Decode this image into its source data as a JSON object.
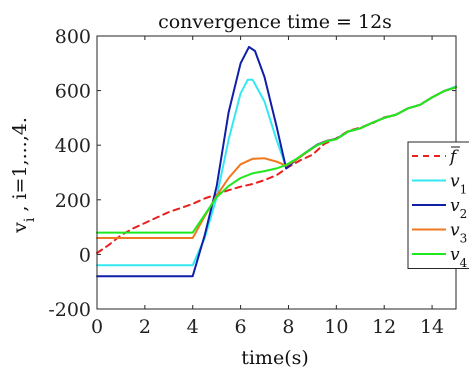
{
  "chart_data": {
    "type": "line",
    "title": "convergence time = 12s",
    "xlabel": "time(s)",
    "ylabel": "v , i=1,...,4.",
    "ylabel_sub": "i",
    "xlim": [
      0,
      15
    ],
    "ylim": [
      -200,
      800
    ],
    "xticks": [
      "0",
      "2",
      "4",
      "6",
      "8",
      "10",
      "12",
      "14"
    ],
    "yticks": [
      "-200",
      "0",
      "200",
      "400",
      "600",
      "800"
    ],
    "grid": false,
    "legend_position": "right",
    "series": [
      {
        "name": "f",
        "legend_main": "f",
        "legend_sub": "",
        "color": "#e8201e",
        "dash": true,
        "points": [
          [
            0,
            5
          ],
          [
            0.5,
            35
          ],
          [
            1,
            70
          ],
          [
            1.5,
            95
          ],
          [
            2,
            115
          ],
          [
            2.5,
            135
          ],
          [
            3,
            155
          ],
          [
            3.5,
            170
          ],
          [
            4,
            185
          ],
          [
            4.5,
            205
          ],
          [
            5,
            220
          ],
          [
            5.5,
            235
          ],
          [
            6,
            248
          ],
          [
            6.5,
            258
          ],
          [
            7,
            272
          ],
          [
            7.5,
            290
          ],
          [
            8,
            320
          ],
          [
            8.5,
            345
          ],
          [
            9,
            365
          ],
          [
            9.5,
            405
          ],
          [
            10,
            425
          ],
          [
            10.5,
            452
          ],
          [
            11,
            465
          ],
          [
            11.5,
            480
          ],
          [
            12,
            502
          ],
          [
            12.5,
            512
          ],
          [
            13,
            535
          ],
          [
            13.5,
            548
          ],
          [
            14,
            575
          ],
          [
            14.5,
            598
          ],
          [
            15,
            615
          ]
        ]
      },
      {
        "name": "v1",
        "legend_main": "v",
        "legend_sub": "1",
        "color": "#33e8f2",
        "dash": false,
        "points": [
          [
            0,
            -40
          ],
          [
            4,
            -40
          ],
          [
            4.5,
            60
          ],
          [
            5,
            210
          ],
          [
            5.5,
            420
          ],
          [
            6,
            590
          ],
          [
            6.3,
            640
          ],
          [
            6.5,
            640
          ],
          [
            7,
            560
          ],
          [
            7.5,
            420
          ],
          [
            7.9,
            320
          ],
          [
            8.3,
            345
          ],
          [
            8.7,
            370
          ],
          [
            9.2,
            400
          ],
          [
            9.6,
            415
          ],
          [
            10,
            422
          ],
          [
            10.5,
            450
          ],
          [
            11,
            462
          ],
          [
            11.5,
            482
          ],
          [
            12,
            500
          ],
          [
            12.5,
            512
          ],
          [
            13,
            535
          ],
          [
            13.5,
            548
          ],
          [
            14,
            575
          ],
          [
            14.5,
            598
          ],
          [
            15,
            615
          ]
        ]
      },
      {
        "name": "v2",
        "legend_main": "v",
        "legend_sub": "2",
        "color": "#0f1fa8",
        "dash": false,
        "points": [
          [
            0,
            -80
          ],
          [
            4,
            -80
          ],
          [
            4.5,
            70
          ],
          [
            5,
            250
          ],
          [
            5.5,
            520
          ],
          [
            6,
            700
          ],
          [
            6.35,
            760
          ],
          [
            6.6,
            745
          ],
          [
            7,
            650
          ],
          [
            7.5,
            470
          ],
          [
            7.9,
            315
          ],
          [
            8.3,
            345
          ],
          [
            8.7,
            372
          ],
          [
            9.2,
            402
          ],
          [
            9.6,
            416
          ],
          [
            10,
            423
          ],
          [
            10.5,
            450
          ],
          [
            11,
            462
          ],
          [
            11.5,
            482
          ],
          [
            12,
            500
          ],
          [
            12.5,
            512
          ],
          [
            13,
            535
          ],
          [
            13.5,
            548
          ],
          [
            14,
            575
          ],
          [
            14.5,
            598
          ],
          [
            15,
            612
          ]
        ]
      },
      {
        "name": "v3",
        "legend_main": "v",
        "legend_sub": "3",
        "color": "#f0781e",
        "dash": false,
        "points": [
          [
            0,
            60
          ],
          [
            4,
            60
          ],
          [
            4.5,
            140
          ],
          [
            5,
            215
          ],
          [
            5.5,
            280
          ],
          [
            6,
            330
          ],
          [
            6.5,
            350
          ],
          [
            7,
            352
          ],
          [
            7.5,
            340
          ],
          [
            7.9,
            325
          ],
          [
            8.3,
            345
          ],
          [
            8.7,
            370
          ],
          [
            9.2,
            400
          ],
          [
            9.6,
            415
          ],
          [
            10,
            422
          ],
          [
            10.5,
            450
          ],
          [
            11,
            462
          ],
          [
            11.5,
            482
          ],
          [
            12,
            500
          ],
          [
            12.5,
            512
          ],
          [
            13,
            535
          ],
          [
            13.5,
            548
          ],
          [
            14,
            575
          ],
          [
            14.5,
            598
          ],
          [
            15,
            612
          ]
        ]
      },
      {
        "name": "v4",
        "legend_main": "v",
        "legend_sub": "4",
        "color": "#1ee81e",
        "dash": false,
        "points": [
          [
            0,
            80
          ],
          [
            4,
            80
          ],
          [
            4.5,
            145
          ],
          [
            5,
            210
          ],
          [
            5.5,
            250
          ],
          [
            6,
            280
          ],
          [
            6.5,
            297
          ],
          [
            7,
            305
          ],
          [
            7.5,
            315
          ],
          [
            7.9,
            328
          ],
          [
            8.3,
            348
          ],
          [
            8.7,
            372
          ],
          [
            9.2,
            400
          ],
          [
            9.6,
            414
          ],
          [
            10,
            422
          ],
          [
            10.5,
            450
          ],
          [
            11,
            462
          ],
          [
            11.5,
            482
          ],
          [
            12,
            500
          ],
          [
            12.5,
            512
          ],
          [
            13,
            535
          ],
          [
            13.5,
            548
          ],
          [
            14,
            575
          ],
          [
            14.5,
            598
          ],
          [
            15,
            612
          ]
        ]
      }
    ]
  }
}
